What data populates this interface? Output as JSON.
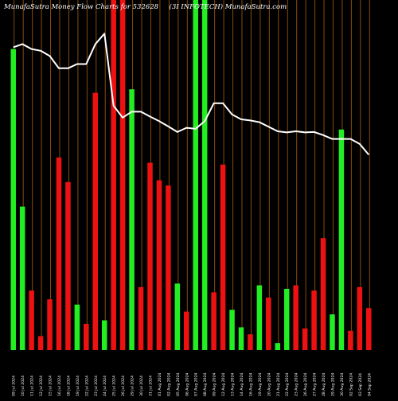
{
  "header": {
    "left": "MunafaSutra  Money Flow  Charts for 532628",
    "right": "(3I INFOTECH) MunafaSutra.com"
  },
  "colors": {
    "background": "#000000",
    "grid": "#8a4a0c",
    "up": "#22ee22",
    "down": "#ee1111",
    "line": "#ffffff",
    "text": "#ffffff"
  },
  "chart_data": {
    "type": "bar",
    "series_note": "",
    "ylim": [
      0,
      100
    ],
    "bars": [
      {
        "date": "09 Jul 2024",
        "value": 86,
        "direction": "up"
      },
      {
        "date": "10 Jul 2024",
        "value": 41,
        "direction": "up"
      },
      {
        "date": "11 Jul 2024",
        "value": 17,
        "direction": "down"
      },
      {
        "date": "12 Jul 2024",
        "value": 4,
        "direction": "down"
      },
      {
        "date": "15 Jul 2024",
        "value": 14.5,
        "direction": "down"
      },
      {
        "date": "16 Jul 2024",
        "value": 55,
        "direction": "down"
      },
      {
        "date": "18 Jul 2024",
        "value": 48,
        "direction": "down"
      },
      {
        "date": "19 Jul 2024",
        "value": 13,
        "direction": "up"
      },
      {
        "date": "22 Jul 2024",
        "value": 7.5,
        "direction": "down"
      },
      {
        "date": "23 Jul 2024",
        "value": 73.5,
        "direction": "down"
      },
      {
        "date": "24 Jul 2024",
        "value": 8.5,
        "direction": "up"
      },
      {
        "date": "25 Jul 2024",
        "value": 100,
        "direction": "down"
      },
      {
        "date": "26 Jul 2024",
        "value": 100,
        "direction": "down"
      },
      {
        "date": "29 Jul 2024",
        "value": 74.5,
        "direction": "up"
      },
      {
        "date": "30 Jul 2024",
        "value": 18,
        "direction": "down"
      },
      {
        "date": "31 Jul 2024",
        "value": 53.5,
        "direction": "down"
      },
      {
        "date": "01 Aug 2024",
        "value": 48.5,
        "direction": "down"
      },
      {
        "date": "02 Aug 2024",
        "value": 47,
        "direction": "down"
      },
      {
        "date": "05 Aug 2024",
        "value": 19,
        "direction": "up"
      },
      {
        "date": "06 Aug 2024",
        "value": 11,
        "direction": "down"
      },
      {
        "date": "07 Aug 2024",
        "value": 100,
        "direction": "up"
      },
      {
        "date": "08 Aug 2024",
        "value": 100,
        "direction": "up"
      },
      {
        "date": "09 Aug 2024",
        "value": 16.5,
        "direction": "down"
      },
      {
        "date": "12 Aug 2024",
        "value": 53,
        "direction": "down"
      },
      {
        "date": "13 Aug 2024",
        "value": 11.5,
        "direction": "up"
      },
      {
        "date": "14 Aug 2024",
        "value": 6.5,
        "direction": "up"
      },
      {
        "date": "16 Aug 2024",
        "value": 4.5,
        "direction": "down"
      },
      {
        "date": "19 Aug 2024",
        "value": 18.5,
        "direction": "up"
      },
      {
        "date": "20 Aug 2024",
        "value": 15,
        "direction": "down"
      },
      {
        "date": "21 Aug 2024",
        "value": 2,
        "direction": "up"
      },
      {
        "date": "22 Aug 2024",
        "value": 17.5,
        "direction": "up"
      },
      {
        "date": "23 Aug 2024",
        "value": 18.5,
        "direction": "down"
      },
      {
        "date": "26 Aug 2024",
        "value": 6.2,
        "direction": "down"
      },
      {
        "date": "27 Aug 2024",
        "value": 17,
        "direction": "down"
      },
      {
        "date": "28 Aug 2024",
        "value": 32,
        "direction": "down"
      },
      {
        "date": "29 Aug 2024",
        "value": 10.2,
        "direction": "up"
      },
      {
        "date": "30 Aug 2024",
        "value": 63,
        "direction": "up"
      },
      {
        "date": "02 Sep 2024",
        "value": 5.5,
        "direction": "down"
      },
      {
        "date": "03 Sep 2024",
        "value": 18,
        "direction": "down"
      },
      {
        "date": "04 Sep 2024",
        "value": 12,
        "direction": "down"
      }
    ],
    "line": [
      86.5,
      87.4,
      86,
      85.5,
      84,
      80.5,
      80.5,
      81.7,
      81.7,
      87.4,
      90.4,
      69.8,
      66.4,
      68.1,
      68.1,
      66.7,
      65.4,
      63.9,
      62.3,
      63.5,
      63.2,
      65.4,
      70.5,
      70.5,
      67.3,
      65.9,
      65.6,
      65.1,
      63.8,
      62.5,
      62.2,
      62.5,
      62.2,
      62.3,
      61.4,
      60.3,
      60.3,
      60.3,
      58.9,
      55.8
    ],
    "line_ylim": [
      0,
      100
    ],
    "x_tick_labels": [
      "09 Jul 2024",
      "10 Jul 2024",
      "11 Jul 2024",
      "12 Jul 2024",
      "15 Jul 2024",
      "16 Jul 2024",
      "18 Jul 2024",
      "19 Jul 2024",
      "22 Jul 2024",
      "23 Jul 2024",
      "24 Jul 2024",
      "25 Jul 2024",
      "26 Jul 2024",
      "29 Jul 2024",
      "30 Jul 2024",
      "31 Jul 2024",
      "01 Aug 2024",
      "02 Aug 2024",
      "05 Aug 2024",
      "06 Aug 2024",
      "07 Aug 2024",
      "08 Aug 2024",
      "09 Aug 2024",
      "12 Aug 2024",
      "13 Aug 2024",
      "14 Aug 2024",
      "16 Aug 2024",
      "19 Aug 2024",
      "20 Aug 2024",
      "21 Aug 2024",
      "22 Aug 2024",
      "23 Aug 2024",
      "26 Aug 2024",
      "27 Aug 2024",
      "28 Aug 2024",
      "29 Aug 2024",
      "30 Aug 2024",
      "02 Sep 2024",
      "03 Sep 2024",
      "04 Sep 2024"
    ],
    "grid": true,
    "legend": "none"
  }
}
